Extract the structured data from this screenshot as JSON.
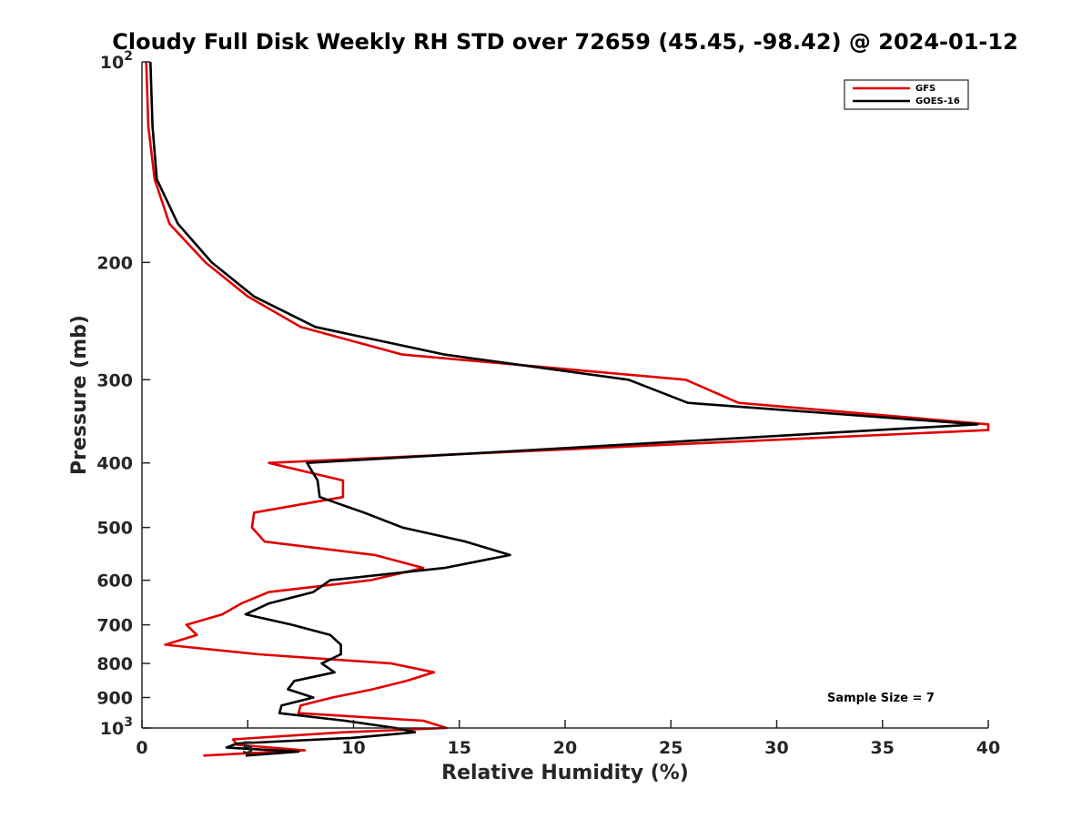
{
  "chart_data": {
    "type": "line",
    "title": "Cloudy Full Disk Weekly RH STD over 72659 (45.45, -98.42) @ 2024-01-12",
    "xlabel": "Relative Humidity (%)",
    "ylabel": "Pressure (mb)",
    "xlim": [
      0,
      40
    ],
    "ylim": [
      100,
      1000
    ],
    "y_scale": "log",
    "y_reversed": true,
    "x_ticks": [
      "0",
      "5",
      "10",
      "15",
      "20",
      "25",
      "30",
      "35",
      "40"
    ],
    "y_ticks": [
      {
        "value": 100,
        "base": "10",
        "exp": "2"
      },
      {
        "value": 200,
        "label": "200"
      },
      {
        "value": 300,
        "label": "300"
      },
      {
        "value": 400,
        "label": "400"
      },
      {
        "value": 500,
        "label": "500"
      },
      {
        "value": 600,
        "label": "600"
      },
      {
        "value": 700,
        "label": "700"
      },
      {
        "value": 800,
        "label": "800"
      },
      {
        "value": 900,
        "label": "900"
      },
      {
        "value": 1000,
        "base": "10",
        "exp": "3"
      }
    ],
    "grid": false,
    "legend_position": "top-right",
    "annotation": "Sample Size = 7",
    "series": [
      {
        "name": "GFS",
        "color": "#e00000",
        "points": [
          [
            0.2,
            100
          ],
          [
            0.3,
            125
          ],
          [
            0.6,
            150
          ],
          [
            1.3,
            175
          ],
          [
            3.0,
            200
          ],
          [
            5.0,
            225
          ],
          [
            7.5,
            250
          ],
          [
            12.3,
            275
          ],
          [
            25.7,
            300
          ],
          [
            28.2,
            325
          ],
          [
            40.0,
            350
          ],
          [
            40.0,
            357
          ],
          [
            6.0,
            400
          ],
          [
            9.5,
            425
          ],
          [
            9.5,
            450
          ],
          [
            5.3,
            475
          ],
          [
            5.2,
            500
          ],
          [
            5.8,
            525
          ],
          [
            11.0,
            550
          ],
          [
            13.3,
            575
          ],
          [
            10.8,
            600
          ],
          [
            6.0,
            625
          ],
          [
            4.7,
            650
          ],
          [
            3.8,
            675
          ],
          [
            2.1,
            700
          ],
          [
            2.6,
            725
          ],
          [
            1.1,
            750
          ],
          [
            5.5,
            775
          ],
          [
            11.8,
            800
          ],
          [
            13.8,
            825
          ],
          [
            12.5,
            850
          ],
          [
            10.9,
            875
          ],
          [
            9.0,
            900
          ],
          [
            7.5,
            925
          ],
          [
            7.4,
            950
          ],
          [
            13.3,
            975
          ],
          [
            14.4,
            1000
          ],
          [
            9.5,
            1015
          ],
          [
            4.3,
            1040
          ],
          [
            4.5,
            1060
          ],
          [
            7.7,
            1080
          ],
          [
            2.9,
            1100
          ]
        ]
      },
      {
        "name": "GOES-16",
        "color": "#000000",
        "points": [
          [
            0.4,
            100
          ],
          [
            0.5,
            125
          ],
          [
            0.7,
            150
          ],
          [
            1.7,
            175
          ],
          [
            3.3,
            200
          ],
          [
            5.3,
            225
          ],
          [
            8.2,
            250
          ],
          [
            14.3,
            275
          ],
          [
            23.0,
            300
          ],
          [
            25.8,
            325
          ],
          [
            39.5,
            350
          ],
          [
            7.8,
            400
          ],
          [
            8.3,
            425
          ],
          [
            8.4,
            450
          ],
          [
            10.5,
            475
          ],
          [
            12.3,
            500
          ],
          [
            15.3,
            525
          ],
          [
            17.4,
            550
          ],
          [
            14.3,
            575
          ],
          [
            8.9,
            600
          ],
          [
            8.1,
            625
          ],
          [
            6.0,
            650
          ],
          [
            4.9,
            675
          ],
          [
            7.1,
            700
          ],
          [
            8.9,
            725
          ],
          [
            9.4,
            750
          ],
          [
            9.4,
            775
          ],
          [
            8.5,
            800
          ],
          [
            9.1,
            825
          ],
          [
            7.2,
            850
          ],
          [
            6.9,
            875
          ],
          [
            8.1,
            900
          ],
          [
            6.6,
            925
          ],
          [
            6.5,
            950
          ],
          [
            9.6,
            975
          ],
          [
            12.0,
            1000
          ],
          [
            12.9,
            1015
          ],
          [
            9.9,
            1035
          ],
          [
            4.5,
            1055
          ],
          [
            4.0,
            1070
          ],
          [
            7.4,
            1085
          ],
          [
            4.9,
            1100
          ]
        ]
      }
    ]
  }
}
